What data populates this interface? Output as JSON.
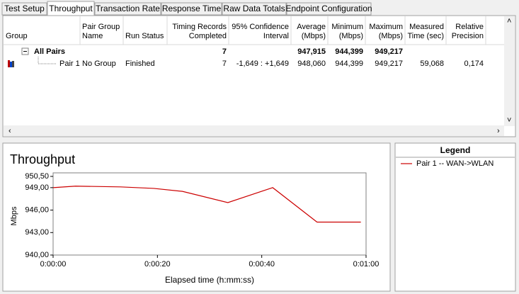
{
  "tabs": [
    "Test Setup",
    "Throughput",
    "Transaction Rate",
    "Response Time",
    "Raw Data Totals",
    "Endpoint Configuration"
  ],
  "table": {
    "headers": [
      [
        "Group"
      ],
      [
        "Pair Group",
        "Name"
      ],
      [
        "Run Status"
      ],
      [
        "Timing Records",
        "Completed"
      ],
      [
        "95% Confidence",
        "Interval"
      ],
      [
        "Average",
        "(Mbps)"
      ],
      [
        "Minimum",
        "(Mbps)"
      ],
      [
        "Maximum",
        "(Mbps)"
      ],
      [
        "Measured",
        "Time (sec)"
      ],
      [
        "Relative",
        "Precision"
      ]
    ],
    "rows": [
      [
        "All Pairs",
        null,
        null,
        "7",
        null,
        "947,915",
        "944,399",
        "949,217",
        null,
        null
      ],
      [
        "Pair 1",
        "No Group",
        "Finished",
        "7",
        "-1,649 : +1,649",
        "948,060",
        "944,399",
        "949,217",
        "59,068",
        "0,174"
      ]
    ]
  },
  "legend": {
    "title": "Legend"
  },
  "chart_data": {
    "type": "line",
    "title": "Throughput",
    "xlabel": "Elapsed time (h:mm:ss)",
    "ylabel": "Mbps",
    "x": [
      0,
      4.3,
      12.9,
      19.3,
      24.8,
      33.5,
      42.1,
      50.6,
      59.0
    ],
    "series": [
      {
        "name": "Pair 1 -- WAN->WLAN",
        "color": "#cc0000",
        "values": [
          949.0,
          949.2,
          949.1,
          948.9,
          948.5,
          947.0,
          949.0,
          944.4,
          944.4
        ]
      }
    ],
    "xlim": [
      0,
      60
    ],
    "ylim": [
      940,
      950.5
    ],
    "xticks": [
      {
        "value": 0,
        "label": "0:00:00"
      },
      {
        "value": 20,
        "label": "0:00:20"
      },
      {
        "value": 40,
        "label": "0:00:40"
      },
      {
        "value": 60,
        "label": "0:01:00"
      }
    ],
    "yticks": [
      {
        "value": 950.5,
        "label": "950,50"
      },
      {
        "value": 949,
        "label": "949,00"
      },
      {
        "value": 946,
        "label": "946,00"
      },
      {
        "value": 943,
        "label": "943,00"
      },
      {
        "value": 940,
        "label": "940,00"
      }
    ]
  }
}
